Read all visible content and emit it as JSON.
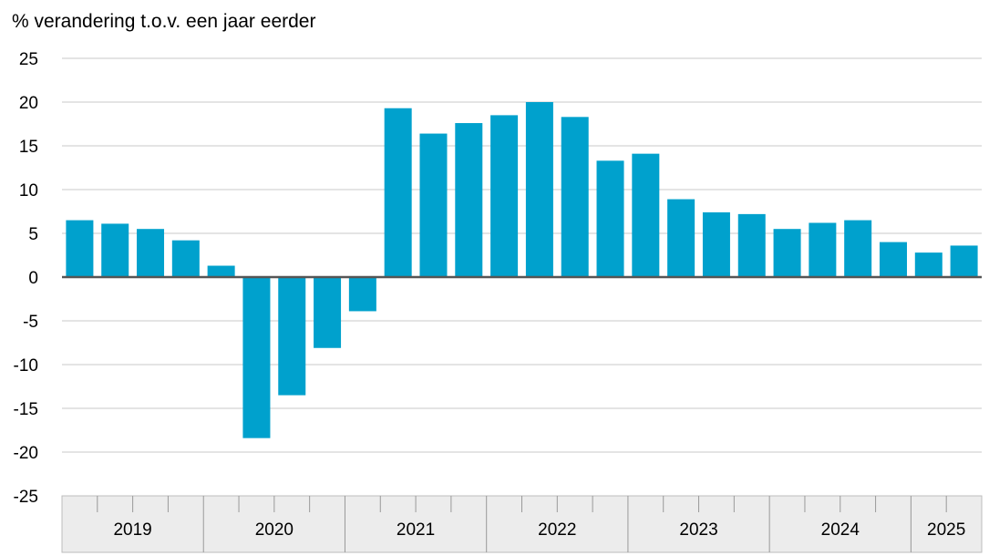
{
  "chart_data": {
    "type": "bar",
    "title": "",
    "xlabel": "",
    "ylabel": "% verandering t.o.v. een jaar eerder",
    "ylim": [
      -25,
      25
    ],
    "yticks": [
      25,
      20,
      15,
      10,
      5,
      0,
      -5,
      -10,
      -15,
      -20,
      -25
    ],
    "grid": true,
    "bar_color": "#00a1cd",
    "groups": [
      {
        "label": "2019",
        "count": 4
      },
      {
        "label": "2020",
        "count": 4
      },
      {
        "label": "2021",
        "count": 4
      },
      {
        "label": "2022",
        "count": 4
      },
      {
        "label": "2023",
        "count": 4
      },
      {
        "label": "2024",
        "count": 4
      },
      {
        "label": "2025",
        "count": 2
      }
    ],
    "categories": [
      "2019 Q1",
      "2019 Q2",
      "2019 Q3",
      "2019 Q4",
      "2020 Q1",
      "2020 Q2",
      "2020 Q3",
      "2020 Q4",
      "2021 Q1",
      "2021 Q2",
      "2021 Q3",
      "2021 Q4",
      "2022 Q1",
      "2022 Q2",
      "2022 Q3",
      "2022 Q4",
      "2023 Q1",
      "2023 Q2",
      "2023 Q3",
      "2023 Q4",
      "2024 Q1",
      "2024 Q2",
      "2024 Q3",
      "2024 Q4",
      "2025 Q1",
      "2025 Q2"
    ],
    "values": [
      6.5,
      6.1,
      5.5,
      4.2,
      1.3,
      -18.4,
      -13.5,
      -8.1,
      -3.9,
      19.3,
      16.4,
      17.6,
      18.5,
      20.0,
      18.3,
      13.3,
      14.1,
      8.9,
      7.4,
      7.2,
      5.5,
      6.2,
      6.5,
      4.0,
      2.8,
      3.6
    ]
  }
}
